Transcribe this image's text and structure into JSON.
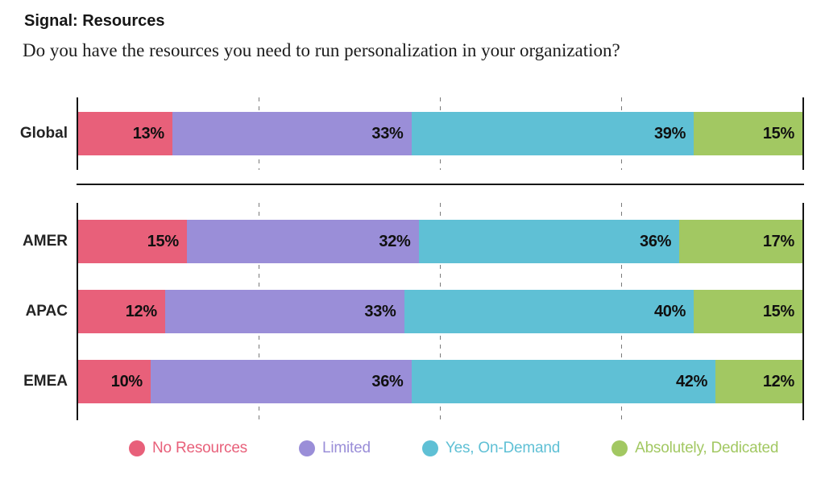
{
  "header": {
    "title": "Signal: Resources",
    "subtitle": "Do you have the resources you need to run personalization in your organization?"
  },
  "chart_data": {
    "type": "bar",
    "variant": "horizontal-stacked",
    "unit": "%",
    "xlim": [
      0,
      100
    ],
    "gridlines_pct": [
      25,
      50,
      75
    ],
    "grid": "dashed-vertical",
    "legend_position": "bottom",
    "series_labels": [
      "No Resources",
      "Limited",
      "Yes, On-Demand",
      "Absolutely, Dedicated"
    ],
    "series_colors": [
      "#E8607A",
      "#9A8ED8",
      "#5FC0D5",
      "#A2C862"
    ],
    "groups": [
      {
        "name": "global",
        "categories": [
          "Global"
        ],
        "rows": [
          [
            13,
            33,
            39,
            15
          ]
        ]
      },
      {
        "name": "regions",
        "categories": [
          "AMER",
          "APAC",
          "EMEA"
        ],
        "rows": [
          [
            15,
            32,
            36,
            17
          ],
          [
            12,
            33,
            40,
            15
          ],
          [
            10,
            36,
            42,
            12
          ]
        ]
      }
    ]
  },
  "style": {
    "axis_color": "#141414",
    "gridline_color": "#7a7a7a",
    "value_label_color": "#101010",
    "category_label_color": "#242424"
  }
}
